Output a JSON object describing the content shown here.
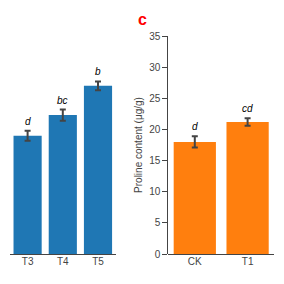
{
  "chart_data": [
    {
      "type": "bar",
      "categories": [
        "T3",
        "T4",
        "T5"
      ],
      "values": [
        19.0,
        22.3,
        27.0
      ],
      "errors": [
        0.8,
        0.9,
        0.7
      ],
      "annotations": [
        {
          "text": "d",
          "category": "T3"
        },
        {
          "text": "bc",
          "category": "T4"
        },
        {
          "text": "b",
          "category": "T5"
        },
        {
          "text": "c",
          "color": "#ff0000"
        }
      ],
      "ylim": [
        0,
        35
      ],
      "yticks": [
        0,
        5,
        10,
        15,
        20,
        25,
        30,
        35
      ],
      "tick_labels": "x",
      "grid": false
    },
    {
      "type": "bar",
      "categories": [
        "CK",
        "T1"
      ],
      "values": [
        18.0,
        21.2
      ],
      "errors": [
        0.9,
        0.6
      ],
      "annotations": [
        {
          "text": "d",
          "category": "CK"
        },
        {
          "text": "cd",
          "category": "T1"
        }
      ],
      "ylabel": "Proline content (μg/g)",
      "ylim": [
        0,
        35
      ],
      "yticks": [
        0,
        5,
        10,
        15,
        20,
        25,
        30,
        35
      ],
      "grid": false
    }
  ]
}
